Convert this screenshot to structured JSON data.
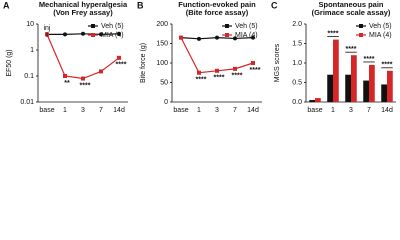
{
  "chart_data": [
    {
      "type": "line",
      "label": "A",
      "title": "Mechanical hyperalgesia",
      "subtitle": "(Von Frey assay)",
      "y_label": "EF50 (g)",
      "log_scale": true,
      "ylim": [
        0.01,
        10
      ],
      "yticks": [
        0.01,
        0.1,
        1,
        10
      ],
      "categories": [
        "base",
        "1",
        "3",
        "7",
        "14d"
      ],
      "series": [
        {
          "name": "Veh (5)",
          "color": "#111111",
          "values": [
            4,
            4,
            4.2,
            4,
            4.2
          ]
        },
        {
          "name": "MIA (4)",
          "color": "#d62728",
          "values": [
            4,
            0.1,
            0.08,
            0.15,
            0.5
          ]
        }
      ],
      "marker_label": "inj",
      "annotations": [
        {
          "x": "1",
          "text": "**"
        },
        {
          "x": "3",
          "text": "****"
        },
        {
          "x": "14d",
          "text": "****"
        }
      ],
      "legend": "upper right"
    },
    {
      "type": "line",
      "label": "B",
      "title": "Function-evoked pain",
      "subtitle": "(Bite force assay)",
      "y_label": "Bite force (g)",
      "ylim": [
        0,
        200
      ],
      "yticks": [
        0,
        50,
        100,
        150,
        200
      ],
      "categories": [
        "base",
        "1",
        "3",
        "7",
        "14d"
      ],
      "series": [
        {
          "name": "Veh (5)",
          "color": "#111111",
          "values": [
            165,
            162,
            165,
            163,
            165
          ]
        },
        {
          "name": "MIA (4)",
          "color": "#d62728",
          "values": [
            165,
            75,
            80,
            85,
            100
          ]
        }
      ],
      "annotations": [
        {
          "x": "1",
          "text": "****"
        },
        {
          "x": "3",
          "text": "****"
        },
        {
          "x": "7",
          "text": "****"
        },
        {
          "x": "14d",
          "text": "****"
        }
      ],
      "legend": "upper right"
    },
    {
      "type": "bar",
      "label": "C",
      "title": "Spontaneous pain",
      "subtitle": "(Grimace scale assay)",
      "y_label": "MGS scores",
      "ylim": [
        0,
        2
      ],
      "yticks": [
        {
          "value": 0,
          "label": "0.0"
        },
        {
          "value": 0.5,
          "label": "0.5"
        },
        {
          "value": 1,
          "label": "1.0"
        },
        {
          "value": 1.5,
          "label": "1.5"
        },
        {
          "value": 2,
          "label": "2.0"
        }
      ],
      "categories": [
        "base",
        "1",
        "3",
        "7",
        "14d"
      ],
      "series": [
        {
          "name": "Veh (5)",
          "color": "#111111",
          "values": [
            0.05,
            0.7,
            0.7,
            0.55,
            0.45
          ]
        },
        {
          "name": "MIA (4)",
          "color": "#d62728",
          "values": [
            0.1,
            1.6,
            1.2,
            0.95,
            0.8
          ]
        }
      ],
      "annotations": [
        {
          "x": "1",
          "text": "****"
        },
        {
          "x": "3",
          "text": "****"
        },
        {
          "x": "7",
          "text": "****"
        },
        {
          "x": "14d",
          "text": "****"
        }
      ],
      "legend": "upper right"
    }
  ]
}
